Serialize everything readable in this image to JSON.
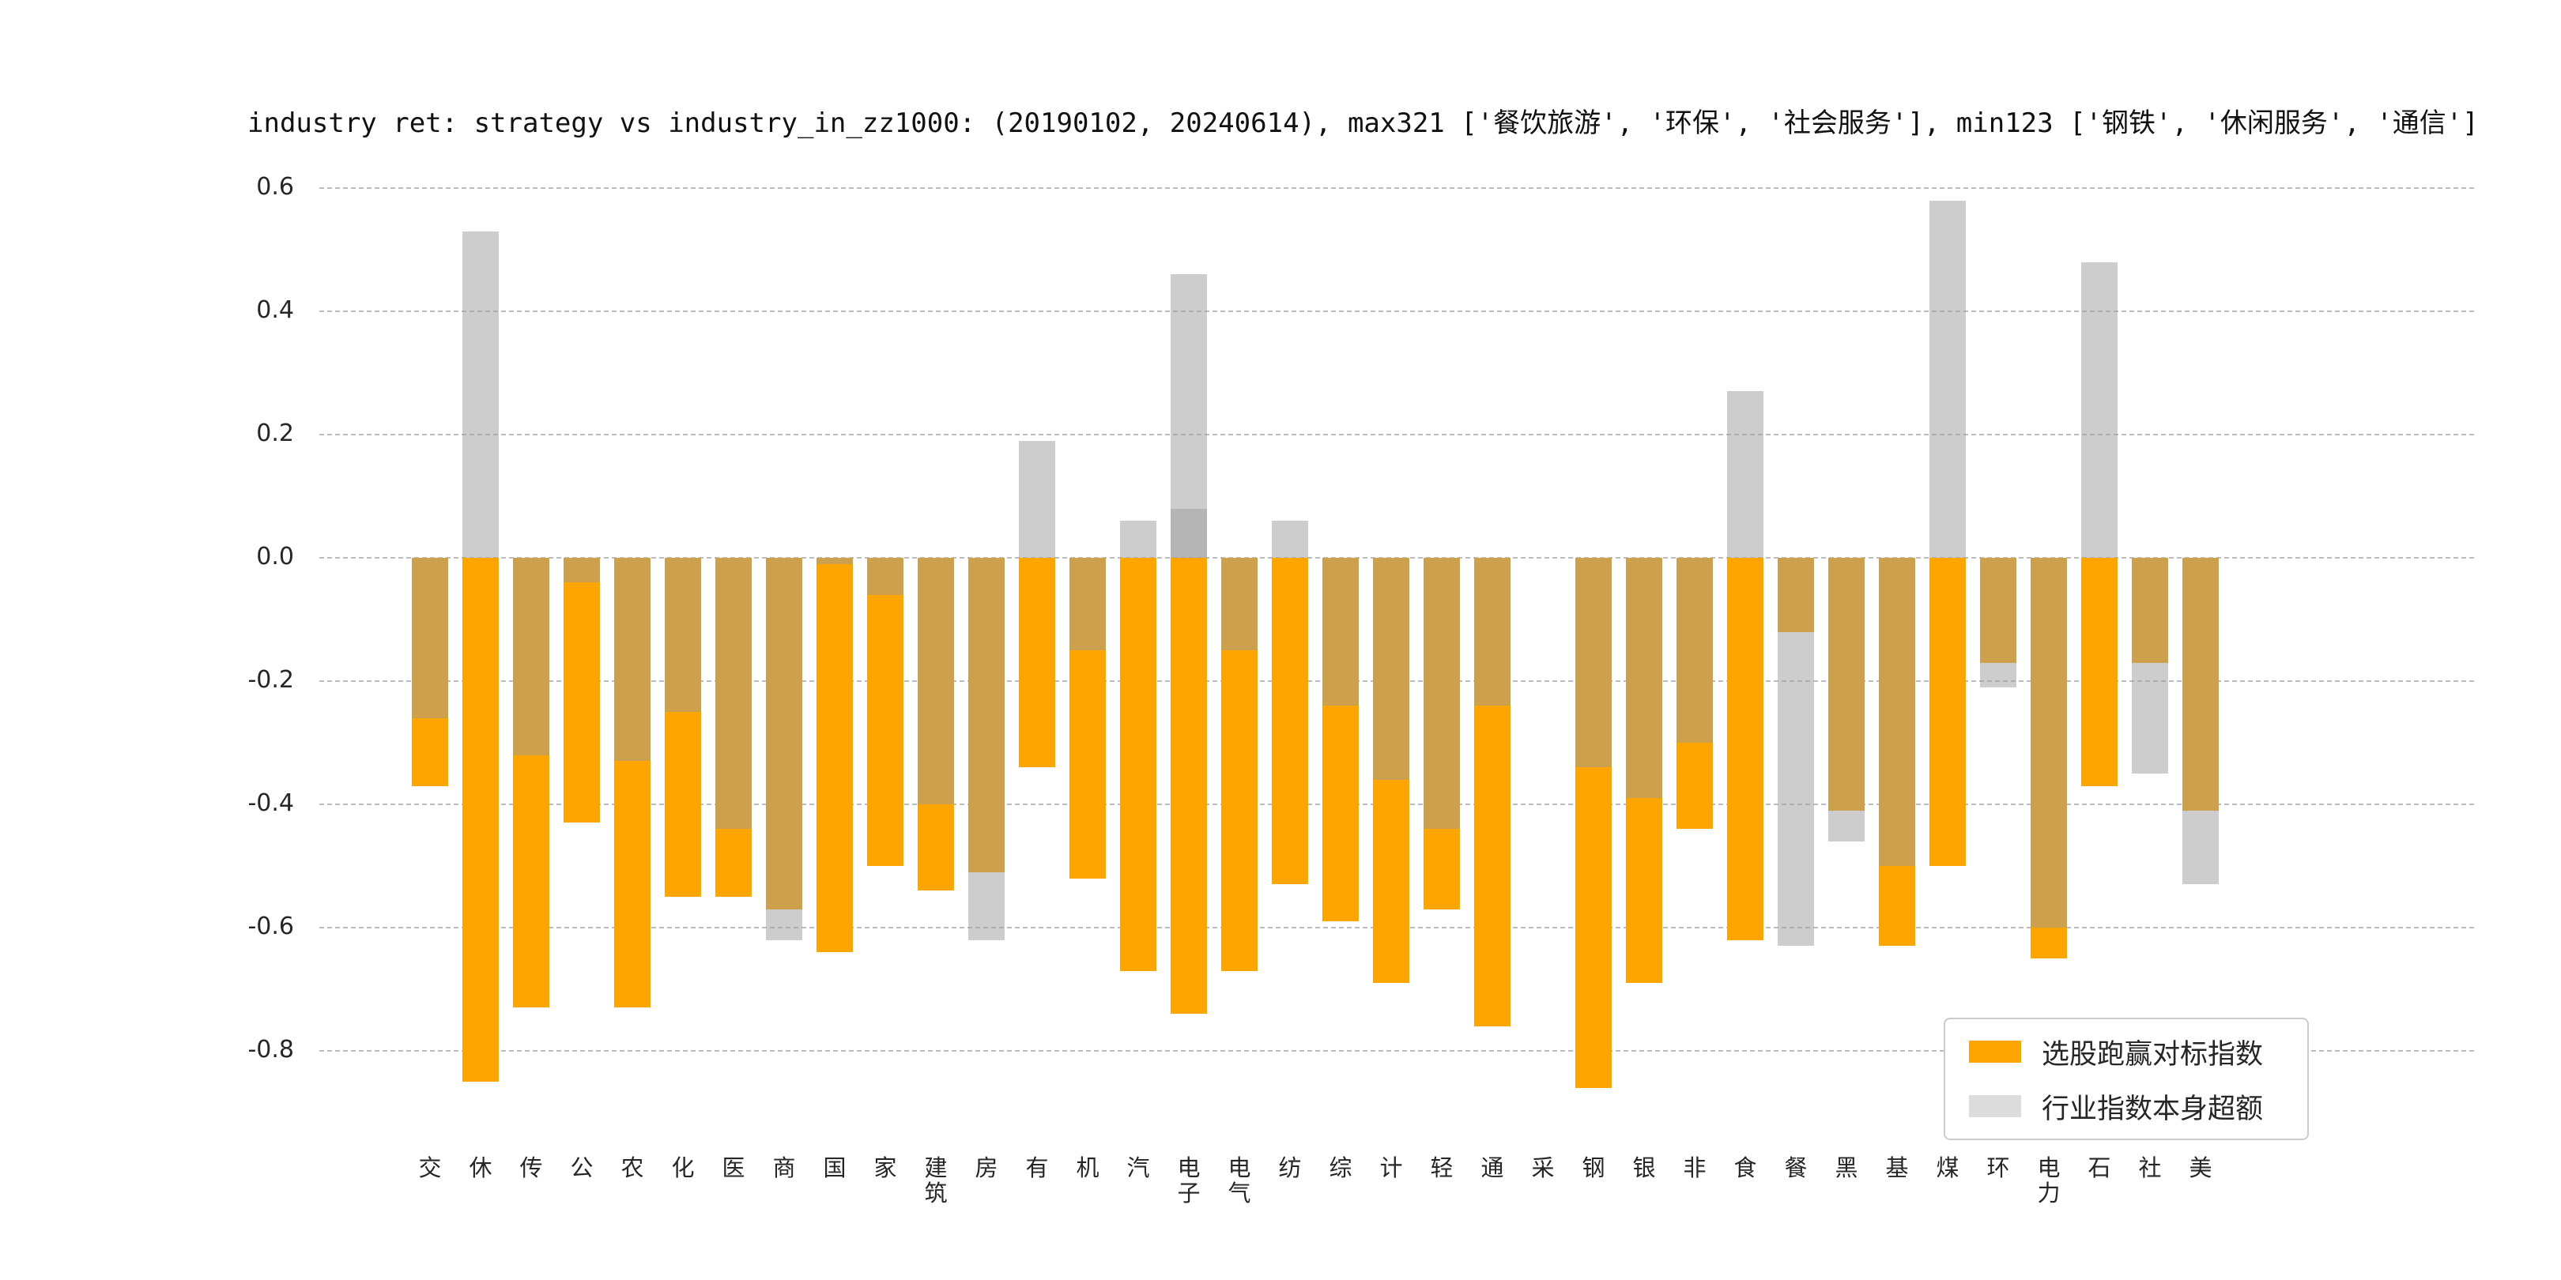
{
  "figure": {
    "title": "industry ret: strategy vs industry_in_zz1000: (20190102, 20240614), max321 ['餐饮旅游', '环保', '社会服务'], min123 ['钢铁', '休闲服务', '通信']"
  },
  "legend": {
    "items": [
      {
        "label": "选股跑赢对标指数",
        "color": "#FFA500"
      },
      {
        "label": "行业指数本身超额",
        "color": "#DCDCDC"
      }
    ]
  },
  "chart_data": {
    "type": "bar",
    "title": "industry ret: strategy vs industry_in_zz1000: (20190102, 20240614), max321 ['餐饮旅游', '环保', '社会服务'], min123 ['钢铁', '休闲服务', '通信']",
    "xlabel": "",
    "ylabel": "",
    "ylim": [
      -0.9,
      0.65
    ],
    "yticks": [
      0.6,
      0.4,
      0.2,
      0.0,
      -0.2,
      -0.4,
      -0.6,
      -0.8
    ],
    "grid": "dashed-horizontal",
    "legend_position": "lower right",
    "bar_style": "overlapping-translucent",
    "categories": [
      "交",
      "休",
      "传",
      "公",
      "农",
      "化",
      "医",
      "商",
      "国",
      "家",
      "建筑",
      "房",
      "有",
      "机",
      "汽",
      "电子",
      "电气",
      "纺",
      "综",
      "计",
      "轻",
      "通",
      "采",
      "钢",
      "银",
      "非",
      "食",
      "餐",
      "黑",
      "基",
      "煤",
      "环",
      "电力",
      "石",
      "社",
      "美"
    ],
    "series": [
      {
        "name": "选股跑赢对标指数",
        "color": "#FFA500",
        "values": [
          -0.37,
          -0.85,
          -0.73,
          -0.43,
          -0.73,
          -0.55,
          -0.55,
          -0.57,
          -0.64,
          -0.5,
          -0.54,
          -0.51,
          -0.34,
          -0.52,
          -0.67,
          -0.74,
          -0.67,
          -0.53,
          -0.59,
          -0.69,
          -0.57,
          -0.76,
          0,
          -0.86,
          -0.69,
          -0.44,
          -0.62,
          -0.12,
          -0.41,
          -0.63,
          -0.5,
          -0.17,
          -0.65,
          -0.37,
          -0.17,
          -0.41
        ]
      },
      {
        "name": "行业指数本身超额",
        "color": "#DCDCDC",
        "values": [
          -0.26,
          0.53,
          -0.32,
          -0.04,
          -0.33,
          -0.25,
          -0.44,
          -0.62,
          -0.01,
          -0.06,
          -0.4,
          -0.62,
          0.19,
          -0.15,
          0.06,
          0.46,
          -0.15,
          0.06,
          -0.24,
          -0.36,
          -0.44,
          -0.24,
          0,
          -0.34,
          -0.39,
          -0.3,
          0.27,
          -0.63,
          -0.46,
          -0.5,
          0.58,
          -0.21,
          -0.6,
          0.48,
          -0.35,
          -0.53
        ]
      }
    ],
    "overlay_patches": [
      {
        "category_index": 15,
        "series": "行业指数本身超额",
        "value": 0.08
      }
    ]
  }
}
